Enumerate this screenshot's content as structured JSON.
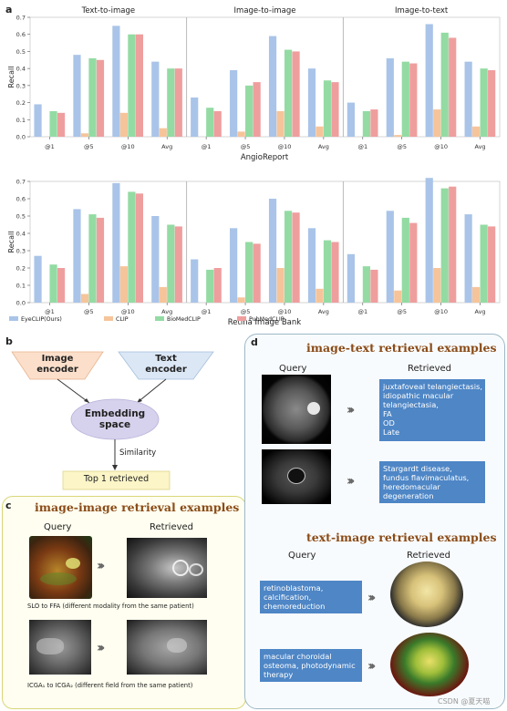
{
  "panel_a": {
    "letter": "a"
  },
  "panel_b": {
    "letter": "b",
    "image_encoder": "Image\nencoder",
    "text_encoder": "Text\nencoder",
    "embedding": "Embedding\nspace",
    "similarity": "Similarity",
    "top1": "Top 1 retrieved"
  },
  "panel_c": {
    "letter": "c",
    "title": "image-image retrieval examples",
    "query": "Query",
    "retrieved": "Retrieved",
    "caption1": "SLO to FFA (different modality from the same patient)",
    "caption2": "ICGA₁ to ICGA₂ (different field from the same patient)"
  },
  "panel_d": {
    "letter": "d",
    "title1": "image-text retrieval examples",
    "title2": "text-image retrieval examples",
    "query": "Query",
    "retrieved": "Retrieved",
    "it_results": [
      "juxtafoveal telangiectasis,\nidiopathic macular\ntelangiectasia,\nFA\nOD\nLate",
      "Stargardt disease,\nfundus flavimaculatus,\nheredomacular\ndegeneration"
    ],
    "ti_queries": [
      "retinoblastoma,\ncalcification,\nchemoreduction",
      "macular choroidal\nosteoma, photodynamic\ntherapy"
    ]
  },
  "watermark": "CSDN @夏天喵",
  "chart_data": [
    {
      "type": "bar",
      "xlabel": "AngioReport",
      "ylabel": "Recall",
      "ylim": [
        0,
        0.7
      ],
      "yticks": [
        0.0,
        0.1,
        0.2,
        0.3,
        0.4,
        0.5,
        0.6,
        0.7
      ],
      "groups": [
        "Text-to-image",
        "Image-to-image",
        "Image-to-text"
      ],
      "categories": [
        "@1",
        "@5",
        "@10",
        "Avg"
      ],
      "series": [
        {
          "name": "EyeCLIP(Ours)",
          "color": "#a9c4e8",
          "values": [
            [
              0.19,
              0.48,
              0.65,
              0.44
            ],
            [
              0.23,
              0.39,
              0.59,
              0.4
            ],
            [
              0.2,
              0.46,
              0.66,
              0.44
            ]
          ]
        },
        {
          "name": "CLIP",
          "color": "#f6c49a",
          "values": [
            [
              0.0,
              0.02,
              0.14,
              0.05
            ],
            [
              0.0,
              0.03,
              0.15,
              0.06
            ],
            [
              0.0,
              0.01,
              0.16,
              0.06
            ]
          ]
        },
        {
          "name": "BioMedCLIP",
          "color": "#93dba3",
          "values": [
            [
              0.15,
              0.46,
              0.6,
              0.4
            ],
            [
              0.17,
              0.3,
              0.51,
              0.33
            ],
            [
              0.15,
              0.44,
              0.61,
              0.4
            ]
          ]
        },
        {
          "name": "PubMedCLIP",
          "color": "#ef9e9e",
          "values": [
            [
              0.14,
              0.45,
              0.6,
              0.4
            ],
            [
              0.15,
              0.32,
              0.5,
              0.32
            ],
            [
              0.16,
              0.43,
              0.58,
              0.39
            ]
          ]
        }
      ]
    },
    {
      "type": "bar",
      "xlabel": "Retina Image Bank",
      "ylabel": "Recall",
      "ylim": [
        0,
        0.7
      ],
      "yticks": [
        0.0,
        0.1,
        0.2,
        0.3,
        0.4,
        0.5,
        0.6,
        0.7
      ],
      "groups": [
        "Text-to-image",
        "Image-to-image",
        "Image-to-text"
      ],
      "categories": [
        "@1",
        "@5",
        "@10",
        "Avg"
      ],
      "series": [
        {
          "name": "EyeCLIP(Ours)",
          "color": "#a9c4e8",
          "values": [
            [
              0.27,
              0.54,
              0.69,
              0.5
            ],
            [
              0.25,
              0.43,
              0.6,
              0.43
            ],
            [
              0.28,
              0.53,
              0.72,
              0.51
            ]
          ]
        },
        {
          "name": "CLIP",
          "color": "#f6c49a",
          "values": [
            [
              0.0,
              0.05,
              0.21,
              0.09
            ],
            [
              0.0,
              0.03,
              0.2,
              0.08
            ],
            [
              0.0,
              0.07,
              0.2,
              0.09
            ]
          ]
        },
        {
          "name": "BioMedCLIP",
          "color": "#93dba3",
          "values": [
            [
              0.22,
              0.51,
              0.64,
              0.45
            ],
            [
              0.19,
              0.35,
              0.53,
              0.36
            ],
            [
              0.21,
              0.49,
              0.66,
              0.45
            ]
          ]
        },
        {
          "name": "PubMedCLIP",
          "color": "#ef9e9e",
          "values": [
            [
              0.2,
              0.49,
              0.63,
              0.44
            ],
            [
              0.2,
              0.34,
              0.52,
              0.35
            ],
            [
              0.19,
              0.46,
              0.67,
              0.44
            ]
          ]
        }
      ]
    }
  ]
}
